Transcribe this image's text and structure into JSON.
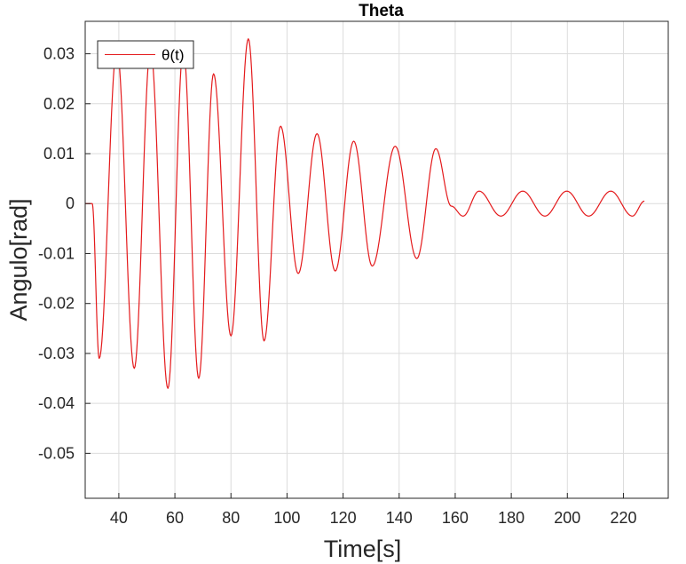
{
  "chart_data": {
    "type": "line",
    "title": "Theta",
    "xlabel": "Time[s]",
    "ylabel": "Angulo[rad]",
    "xlim": [
      28,
      236
    ],
    "ylim": [
      -0.059,
      0.0365
    ],
    "xticks": [
      40,
      60,
      80,
      100,
      120,
      140,
      160,
      180,
      200,
      220
    ],
    "xtick_labels": [
      "40",
      "60",
      "80",
      "100",
      "120",
      "140",
      "160",
      "180",
      "200",
      "220"
    ],
    "yticks": [
      0.03,
      0.02,
      0.01,
      0,
      -0.01,
      -0.02,
      -0.03,
      -0.04,
      -0.05
    ],
    "ytick_labels": [
      "0.03",
      "0.02",
      "0.01",
      "0",
      "-0.01",
      "-0.02",
      "-0.03",
      "-0.04",
      "-0.05"
    ],
    "grid": true,
    "legend": {
      "location": "top-left",
      "entries": [
        "θ(t)"
      ]
    },
    "series": [
      {
        "name": "θ(t)",
        "color": "#e41a1c",
        "x": [
          28,
          30,
          30.5,
          33,
          39.3,
          45.5,
          51.3,
          57.5,
          63,
          68.5,
          73.8,
          80,
          86.2,
          91.8,
          97.7,
          104,
          110.7,
          117.2,
          123.8,
          130.4,
          138.6,
          146.3,
          153.1,
          158.6,
          162.8,
          168.5,
          176.3,
          184.1,
          192,
          199.8,
          207.6,
          215.5,
          223.2,
          227.5
        ],
        "y": [
          0,
          0,
          0,
          -0.031,
          0.031,
          -0.033,
          0.031,
          -0.037,
          0.031,
          -0.035,
          0.026,
          -0.0265,
          0.033,
          -0.0275,
          0.0155,
          -0.014,
          0.014,
          -0.0135,
          0.0125,
          -0.0125,
          0.0115,
          -0.011,
          0.011,
          -0.0005,
          -0.0025,
          0.0025,
          -0.0025,
          0.0025,
          -0.0025,
          0.0025,
          -0.0025,
          0.0025,
          -0.0025,
          0.0005
        ]
      }
    ]
  }
}
